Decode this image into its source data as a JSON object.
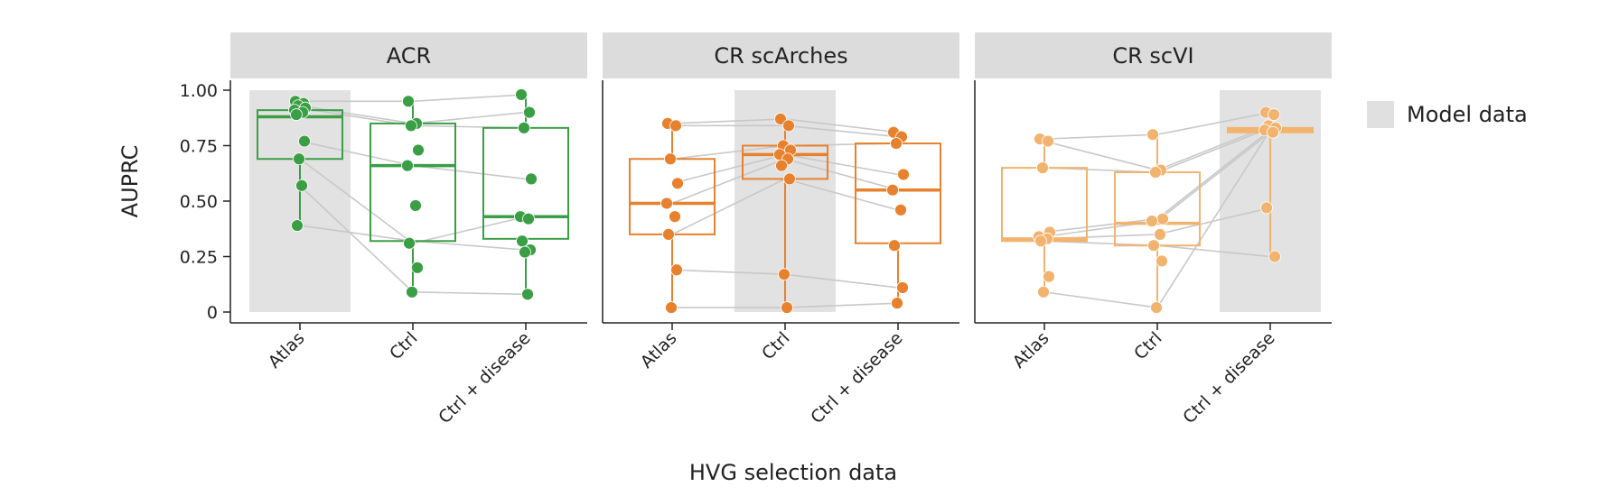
{
  "chart_data": {
    "type": "box",
    "ylabel": "AUPRC",
    "xlabel": "HVG selection data",
    "ylim": [
      0,
      1
    ],
    "yticks": [
      0,
      0.25,
      0.5,
      0.75,
      1.0
    ],
    "ytick_labels": [
      "0",
      "0.25",
      "0.50",
      "0.75",
      "1.00"
    ],
    "categories": [
      "Atlas",
      "Ctrl",
      "Ctrl + disease"
    ],
    "legend": {
      "label": "Model data",
      "color": "#e0e0e0",
      "position": "right"
    },
    "panels": [
      {
        "title": "ACR",
        "color": "#3a9e45",
        "model_data_category": "Atlas",
        "boxes": [
          {
            "category": "Atlas",
            "q1": 0.69,
            "median": 0.88,
            "q3": 0.91,
            "whisker_low": 0.39,
            "whisker_high": 0.95,
            "points": [
              0.95,
              0.94,
              0.93,
              0.92,
              0.91,
              0.9,
              0.89,
              0.77,
              0.69,
              0.57,
              0.39
            ]
          },
          {
            "category": "Ctrl",
            "q1": 0.32,
            "median": 0.66,
            "q3": 0.85,
            "whisker_low": 0.09,
            "whisker_high": 0.95,
            "points": [
              0.95,
              0.85,
              0.84,
              0.73,
              0.66,
              0.48,
              0.31,
              0.2,
              0.09
            ]
          },
          {
            "category": "Ctrl + disease",
            "q1": 0.33,
            "median": 0.43,
            "q3": 0.83,
            "whisker_low": 0.08,
            "whisker_high": 0.98,
            "points": [
              0.98,
              0.9,
              0.83,
              0.6,
              0.43,
              0.42,
              0.32,
              0.28,
              0.27,
              0.08
            ]
          }
        ],
        "pair_lines": [
          [
            0.95,
            0.95,
            0.98
          ],
          [
            0.93,
            0.85,
            0.9
          ],
          [
            0.92,
            0.84,
            0.83
          ],
          [
            0.77,
            0.66,
            0.6
          ],
          [
            0.69,
            0.31,
            0.43
          ],
          [
            0.57,
            0.09,
            0.08
          ],
          [
            0.39,
            0.32,
            0.28
          ]
        ]
      },
      {
        "title": "CR scArches",
        "color": "#e8812d",
        "model_data_category": "Ctrl",
        "boxes": [
          {
            "category": "Atlas",
            "q1": 0.35,
            "median": 0.49,
            "q3": 0.69,
            "whisker_low": 0.02,
            "whisker_high": 0.85,
            "points": [
              0.85,
              0.84,
              0.69,
              0.58,
              0.49,
              0.43,
              0.35,
              0.19,
              0.02
            ]
          },
          {
            "category": "Ctrl",
            "q1": 0.6,
            "median": 0.71,
            "q3": 0.75,
            "whisker_low": 0.02,
            "whisker_high": 0.87,
            "points": [
              0.87,
              0.84,
              0.75,
              0.73,
              0.71,
              0.69,
              0.66,
              0.6,
              0.17,
              0.02
            ]
          },
          {
            "category": "Ctrl + disease",
            "q1": 0.31,
            "median": 0.55,
            "q3": 0.76,
            "whisker_low": 0.04,
            "whisker_high": 0.81,
            "points": [
              0.81,
              0.79,
              0.76,
              0.62,
              0.55,
              0.46,
              0.3,
              0.11,
              0.04
            ]
          }
        ],
        "pair_lines": [
          [
            0.85,
            0.87,
            0.81
          ],
          [
            0.84,
            0.84,
            0.79
          ],
          [
            0.69,
            0.75,
            0.76
          ],
          [
            0.58,
            0.71,
            0.62
          ],
          [
            0.49,
            0.69,
            0.55
          ],
          [
            0.35,
            0.6,
            0.46
          ],
          [
            0.19,
            0.17,
            0.11
          ],
          [
            0.02,
            0.02,
            0.04
          ]
        ]
      },
      {
        "title": "CR scVI",
        "color": "#f2b36f",
        "model_data_category": "Ctrl + disease",
        "boxes": [
          {
            "category": "Atlas",
            "q1": 0.32,
            "median": 0.33,
            "q3": 0.65,
            "whisker_low": 0.09,
            "whisker_high": 0.78,
            "points": [
              0.78,
              0.77,
              0.65,
              0.36,
              0.34,
              0.33,
              0.32,
              0.16,
              0.09
            ]
          },
          {
            "category": "Ctrl",
            "q1": 0.3,
            "median": 0.4,
            "q3": 0.63,
            "whisker_low": 0.02,
            "whisker_high": 0.8,
            "points": [
              0.8,
              0.64,
              0.63,
              0.42,
              0.41,
              0.35,
              0.3,
              0.23,
              0.02
            ]
          },
          {
            "category": "Ctrl + disease",
            "q1": 0.81,
            "median": 0.82,
            "q3": 0.83,
            "whisker_low": 0.25,
            "whisker_high": 0.9,
            "points": [
              0.9,
              0.89,
              0.84,
              0.83,
              0.82,
              0.81,
              0.47,
              0.25
            ]
          }
        ],
        "pair_lines": [
          [
            0.78,
            0.8,
            0.9
          ],
          [
            0.77,
            0.64,
            0.84
          ],
          [
            0.65,
            0.63,
            0.83
          ],
          [
            0.36,
            0.42,
            0.82
          ],
          [
            0.34,
            0.41,
            0.81
          ],
          [
            0.33,
            0.35,
            0.47
          ],
          [
            0.32,
            0.3,
            0.25
          ],
          [
            0.09,
            0.02,
            0.82
          ]
        ]
      }
    ]
  }
}
